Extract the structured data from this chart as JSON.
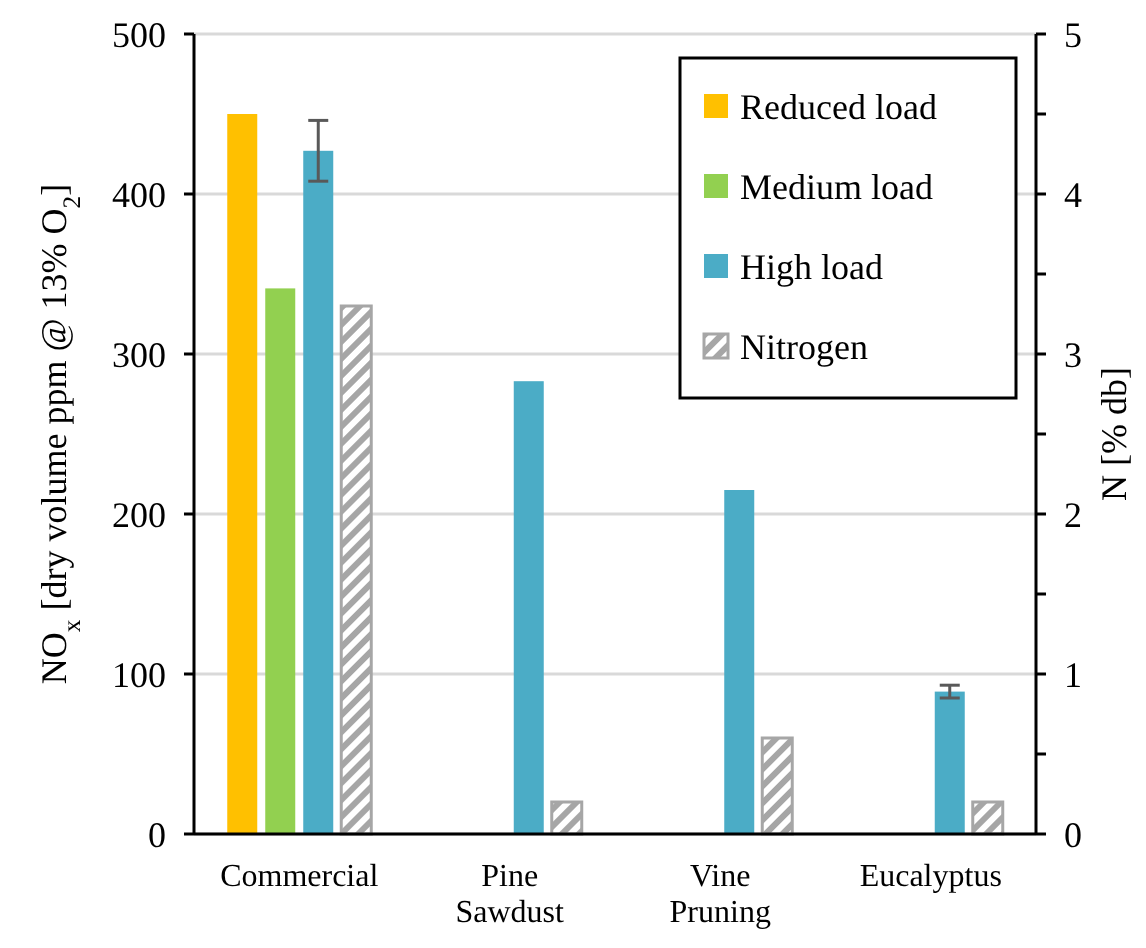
{
  "chart_data": {
    "type": "bar",
    "categories": [
      "Commercial",
      "Pine Sawdust",
      "Vine Pruning",
      "Eucalyptus"
    ],
    "ylabel": "NO$_{x}$ [dry volume ppm @ 13% O$_{2}$]",
    "y2label": "N [% db]",
    "ylim": [
      0,
      500
    ],
    "yticks": [
      0,
      100,
      200,
      300,
      400,
      500
    ],
    "y2lim": [
      0,
      5
    ],
    "y2ticks": [
      0,
      {
        "value": 0.5,
        "label": null
      },
      1,
      {
        "value": 1.5,
        "label": null
      },
      2,
      {
        "value": 2.5,
        "label": null
      },
      3,
      {
        "value": 3.5,
        "label": null
      },
      4,
      {
        "value": 4.5,
        "label": null
      },
      5
    ],
    "grid": "y",
    "legend": "top right",
    "series": [
      {
        "name": "Reduced load",
        "color": "#ffc000",
        "values": [
          450,
          null,
          null,
          null
        ]
      },
      {
        "name": "Medium load",
        "color": "#92d050",
        "values": [
          341,
          null,
          null,
          null
        ]
      },
      {
        "name": "High load",
        "color": "#4bacc6",
        "values": [
          427,
          283,
          215,
          89
        ],
        "errors": [
          19,
          null,
          null,
          4
        ]
      },
      {
        "name": "Nitrogen",
        "color": "#a6a6a6",
        "axis": "y2",
        "values": [
          3.3,
          0.2,
          0.6,
          0.2
        ]
      }
    ]
  }
}
